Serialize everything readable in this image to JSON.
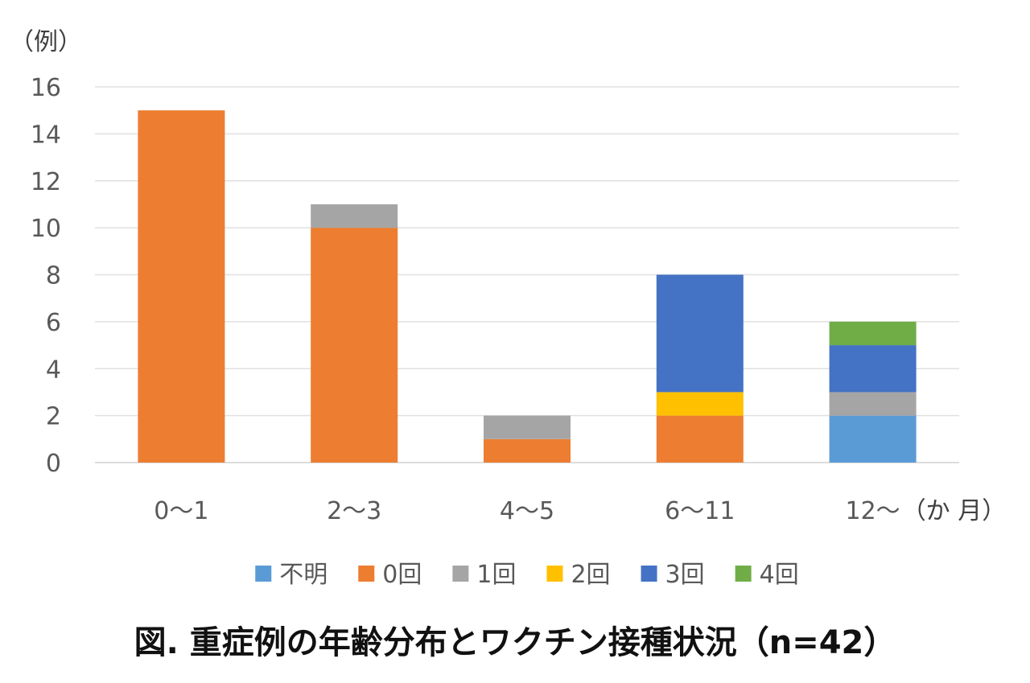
{
  "chart_data": {
    "type": "bar",
    "stacked": true,
    "y_unit_label": "（例）",
    "x_unit_label": "（か 月）",
    "caption": "図. 重症例の年齢分布とワクチン接種状況（n=42）",
    "categories": [
      "0〜1",
      "2〜3",
      "4〜5",
      "6〜11",
      "12〜"
    ],
    "ylim": [
      0,
      16
    ],
    "yticks": [
      0,
      2,
      4,
      6,
      8,
      10,
      12,
      14,
      16
    ],
    "grid": true,
    "legend_position": "bottom",
    "series": [
      {
        "name": "不明",
        "color": "#5B9BD5",
        "values": [
          0,
          0,
          0,
          0,
          2
        ]
      },
      {
        "name": "0回",
        "color": "#ED7D31",
        "values": [
          15,
          10,
          1,
          2,
          0
        ]
      },
      {
        "name": "1回",
        "color": "#A5A5A5",
        "values": [
          0,
          1,
          1,
          0,
          1
        ]
      },
      {
        "name": "2回",
        "color": "#FFC000",
        "values": [
          0,
          0,
          0,
          1,
          0
        ]
      },
      {
        "name": "3回",
        "color": "#4472C4",
        "values": [
          0,
          0,
          0,
          5,
          2
        ]
      },
      {
        "name": "4回",
        "color": "#70AD47",
        "values": [
          0,
          0,
          0,
          0,
          1
        ]
      }
    ]
  }
}
